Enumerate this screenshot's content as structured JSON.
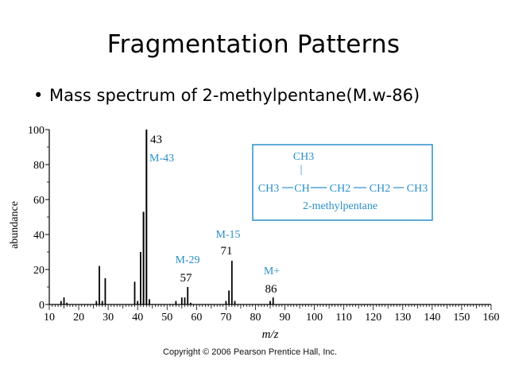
{
  "slide": {
    "title": "Fragmentation Patterns",
    "bullet_marker": "•",
    "bullet_text": "Mass spectrum of 2-methylpentane(M.w-86)",
    "copyright": "Copyright © 2006 Pearson Prentice Hall, Inc."
  },
  "colors": {
    "peak": "#000000",
    "annotation_blue": "#2a8fc9",
    "frame_blue": "#2a8fc9"
  },
  "chart_data": {
    "type": "bar",
    "xlabel": "m/z",
    "ylabel": "abundance",
    "xlim": [
      10,
      160
    ],
    "ylim": [
      0,
      100
    ],
    "x_ticks": [
      10,
      20,
      30,
      40,
      50,
      60,
      70,
      80,
      90,
      100,
      110,
      120,
      130,
      140,
      150,
      160
    ],
    "y_ticks": [
      0,
      20,
      40,
      60,
      80,
      100
    ],
    "grid": false,
    "peaks": [
      {
        "mz": 14,
        "abundance": 2
      },
      {
        "mz": 15,
        "abundance": 4
      },
      {
        "mz": 16,
        "abundance": 1
      },
      {
        "mz": 26,
        "abundance": 2
      },
      {
        "mz": 27,
        "abundance": 22
      },
      {
        "mz": 28,
        "abundance": 2
      },
      {
        "mz": 29,
        "abundance": 15
      },
      {
        "mz": 39,
        "abundance": 13
      },
      {
        "mz": 40,
        "abundance": 2
      },
      {
        "mz": 41,
        "abundance": 30
      },
      {
        "mz": 42,
        "abundance": 53
      },
      {
        "mz": 43,
        "abundance": 100
      },
      {
        "mz": 44,
        "abundance": 3
      },
      {
        "mz": 53,
        "abundance": 2
      },
      {
        "mz": 55,
        "abundance": 4
      },
      {
        "mz": 56,
        "abundance": 4
      },
      {
        "mz": 57,
        "abundance": 10
      },
      {
        "mz": 58,
        "abundance": 1
      },
      {
        "mz": 70,
        "abundance": 2
      },
      {
        "mz": 71,
        "abundance": 8
      },
      {
        "mz": 72,
        "abundance": 25
      },
      {
        "mz": 73,
        "abundance": 2
      },
      {
        "mz": 85,
        "abundance": 2
      },
      {
        "mz": 86,
        "abundance": 4
      }
    ],
    "annotations": [
      {
        "mz": 43,
        "mass_label": "43",
        "fragment_label": "M-43"
      },
      {
        "mz": 57,
        "mass_label": "57",
        "fragment_label": "M-29"
      },
      {
        "mz": 71,
        "mass_label": "71",
        "fragment_label": "M-15"
      },
      {
        "mz": 86,
        "mass_label": "86",
        "fragment_label": "M+"
      }
    ],
    "structure": {
      "top_group": "CH3",
      "branch": "|",
      "chain": [
        "CH3",
        "CH",
        "CH2",
        "CH2",
        "CH3"
      ],
      "name": "2-methylpentane"
    }
  }
}
